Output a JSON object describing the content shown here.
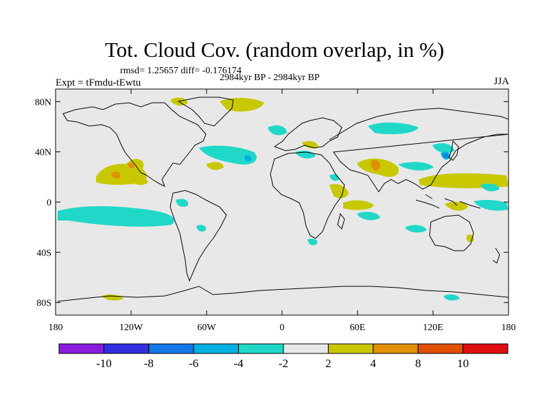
{
  "title": "Tot. Cloud Cov. (random overlap, in %)",
  "stats": "rmsd= 1.25657 diff= -0.176174",
  "period": "2984kyr BP - 2984kyr BP",
  "experiment": "Expt = tFmdu-tEwtu",
  "season": "JJA",
  "map": {
    "lon_range": [
      -180,
      180
    ],
    "lat_range": [
      -90,
      90
    ],
    "background_color": "#e8e8e8",
    "x_ticks": [
      {
        "lon": -180,
        "label": "180"
      },
      {
        "lon": -120,
        "label": "120W"
      },
      {
        "lon": -60,
        "label": "60W"
      },
      {
        "lon": 0,
        "label": "0"
      },
      {
        "lon": 60,
        "label": "60E"
      },
      {
        "lon": 120,
        "label": "120E"
      },
      {
        "lon": 180,
        "label": "180"
      }
    ],
    "y_ticks": [
      {
        "lat": 80,
        "label": "80N"
      },
      {
        "lat": 40,
        "label": "40N"
      },
      {
        "lat": 0,
        "label": "0"
      },
      {
        "lat": -40,
        "label": "40S"
      },
      {
        "lat": -80,
        "label": "80S"
      }
    ],
    "anomaly_colors": {
      "plus2_4": "#c8c800",
      "plus4_8": "#e09000",
      "minus2_4": "#20d8c8",
      "minus4_6": "#00b0e0",
      "minus6_8": "#0080e0"
    }
  },
  "colorbar": {
    "colors": [
      "#8a1ce0",
      "#3030e0",
      "#1478e8",
      "#00b0e0",
      "#20d8c8",
      "#e8e8e8",
      "#c8c800",
      "#e09000",
      "#e05000",
      "#e01010"
    ],
    "labels": [
      "-10",
      "-8",
      "-6",
      "-4",
      "-2",
      "2",
      "4",
      "8",
      "10"
    ]
  }
}
